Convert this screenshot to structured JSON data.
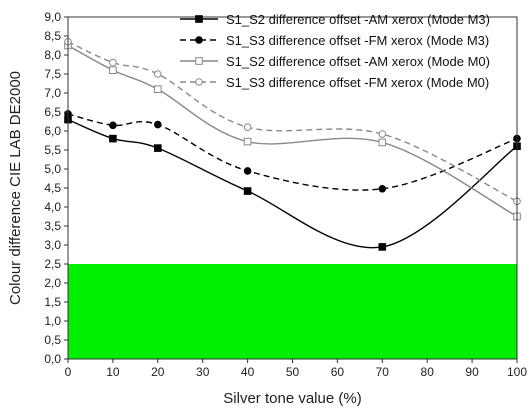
{
  "chart_data": {
    "type": "line",
    "xlabel": "Silver tone value (%)",
    "ylabel": "Colour difference CIE LAB DE2000",
    "xlim": [
      0,
      100
    ],
    "ylim": [
      0,
      9
    ],
    "x_ticks": [
      "0",
      "10",
      "20",
      "30",
      "40",
      "50",
      "60",
      "70",
      "80",
      "90",
      "100"
    ],
    "y_ticks": [
      "0,0",
      "0,5",
      "1,0",
      "1,5",
      "2,0",
      "2,5",
      "3,0",
      "3,5",
      "4,0",
      "4,5",
      "5,0",
      "5,5",
      "6,0",
      "6,5",
      "7,0",
      "7,5",
      "8,0",
      "8,5",
      "9,0"
    ],
    "x": [
      0,
      10,
      20,
      40,
      70,
      100
    ],
    "threshold_band": {
      "from": 0,
      "to": 2.5,
      "color": "#00ee00"
    },
    "legend_position": "top-right",
    "series": [
      {
        "name": "S1_S2 difference offset -AM xerox (Mode M3)",
        "values": [
          6.3,
          5.8,
          5.55,
          4.42,
          2.95,
          5.6
        ],
        "color": "#000000",
        "line": "solid",
        "marker": "filled-square"
      },
      {
        "name": "S1_S3 difference offset -FM xerox (Mode M3)",
        "values": [
          6.45,
          6.15,
          6.17,
          4.95,
          4.48,
          5.8
        ],
        "color": "#000000",
        "line": "dashed",
        "marker": "filled-circle"
      },
      {
        "name": "S1_S2 difference offset -AM xerox (Mode M0)",
        "values": [
          8.25,
          7.6,
          7.1,
          5.72,
          5.7,
          3.75
        ],
        "color": "#888888",
        "line": "solid",
        "marker": "open-square"
      },
      {
        "name": "S1_S3 difference offset -FM xerox (Mode M0)",
        "values": [
          8.35,
          7.8,
          7.5,
          6.1,
          5.92,
          4.15
        ],
        "color": "#888888",
        "line": "dashed",
        "marker": "open-circle"
      }
    ]
  }
}
